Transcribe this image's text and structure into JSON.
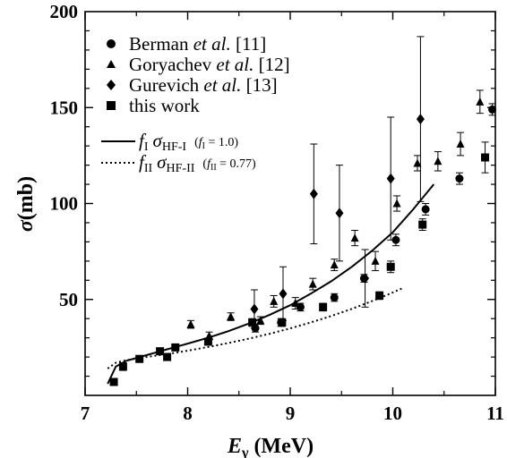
{
  "chart_data": {
    "type": "scatter",
    "xlabel_main": "E",
    "xlabel_sub": "γ",
    "xlabel_unit": " (MeV)",
    "ylabel_main": "σ",
    "ylabel_unit": "(mb)",
    "xlim": [
      7,
      11
    ],
    "ylim": [
      0,
      200
    ],
    "xticks": [
      "7",
      "8",
      "9",
      "10",
      "11"
    ],
    "yticks": [
      "50",
      "100",
      "150",
      "200"
    ],
    "grid": false,
    "legend_position": "top-left",
    "series": [
      {
        "name_prefix": "Berman ",
        "name_italic": "et al.",
        "name_suffix": " [11]",
        "marker": "circle",
        "points": [
          {
            "x": 8.66,
            "y": 35,
            "err": 2
          },
          {
            "x": 8.91,
            "y": 38,
            "err": 2
          },
          {
            "x": 9.1,
            "y": 46,
            "err": 2
          },
          {
            "x": 9.43,
            "y": 51,
            "err": 2
          },
          {
            "x": 9.72,
            "y": 61,
            "err": 2
          },
          {
            "x": 10.03,
            "y": 81,
            "err": 3
          },
          {
            "x": 10.32,
            "y": 97,
            "err": 3
          },
          {
            "x": 10.65,
            "y": 113,
            "err": 3
          },
          {
            "x": 10.97,
            "y": 149,
            "err": 3
          }
        ]
      },
      {
        "name_prefix": "Goryachev ",
        "name_italic": "et al.",
        "name_suffix": " [12]",
        "marker": "triangle",
        "points": [
          {
            "x": 8.03,
            "y": 37,
            "err": 2
          },
          {
            "x": 8.21,
            "y": 31,
            "err": 2
          },
          {
            "x": 8.42,
            "y": 41,
            "err": 2
          },
          {
            "x": 8.71,
            "y": 39,
            "err": 2
          },
          {
            "x": 8.84,
            "y": 49,
            "err": 3
          },
          {
            "x": 9.05,
            "y": 48,
            "err": 3
          },
          {
            "x": 9.22,
            "y": 58,
            "err": 3
          },
          {
            "x": 9.43,
            "y": 68,
            "err": 3
          },
          {
            "x": 9.63,
            "y": 82,
            "err": 4
          },
          {
            "x": 9.83,
            "y": 70,
            "err": 5
          },
          {
            "x": 10.04,
            "y": 100,
            "err": 4
          },
          {
            "x": 10.24,
            "y": 121,
            "err": 4
          },
          {
            "x": 10.44,
            "y": 122,
            "err": 5
          },
          {
            "x": 10.66,
            "y": 131,
            "err": 6
          },
          {
            "x": 10.85,
            "y": 153,
            "err": 6
          }
        ]
      },
      {
        "name_prefix": "Gurevich ",
        "name_italic": "et al.",
        "name_suffix": " [13]",
        "marker": "diamond",
        "points": [
          {
            "x": 8.65,
            "y": 45,
            "err": 10
          },
          {
            "x": 8.93,
            "y": 53,
            "err": 14
          },
          {
            "x": 9.23,
            "y": 105,
            "err": 26
          },
          {
            "x": 9.48,
            "y": 95,
            "err": 25
          },
          {
            "x": 9.73,
            "y": 61,
            "err": 15
          },
          {
            "x": 9.98,
            "y": 113,
            "err": 32
          },
          {
            "x": 10.27,
            "y": 144,
            "err": 43
          }
        ]
      },
      {
        "name": "this work",
        "marker": "square",
        "points": [
          {
            "x": 7.28,
            "y": 7,
            "err": 0
          },
          {
            "x": 7.37,
            "y": 15,
            "err": 2
          },
          {
            "x": 7.53,
            "y": 19,
            "err": 1
          },
          {
            "x": 7.73,
            "y": 23,
            "err": 1
          },
          {
            "x": 7.8,
            "y": 20,
            "err": 1
          },
          {
            "x": 7.88,
            "y": 25,
            "err": 1
          },
          {
            "x": 8.2,
            "y": 28,
            "err": 1
          },
          {
            "x": 8.63,
            "y": 38,
            "err": 2
          },
          {
            "x": 8.92,
            "y": 38,
            "err": 2
          },
          {
            "x": 9.32,
            "y": 46,
            "err": 2
          },
          {
            "x": 9.87,
            "y": 52,
            "err": 2
          },
          {
            "x": 9.98,
            "y": 67,
            "err": 3
          },
          {
            "x": 10.29,
            "y": 89,
            "err": 3
          },
          {
            "x": 10.9,
            "y": 124,
            "err": 8
          }
        ]
      }
    ],
    "fits": [
      {
        "style": "solid",
        "f_main": "f",
        "f_sub": "I",
        "sigma_sub": "HF-I",
        "param_f": "f",
        "param_sub": "I",
        "param_value": " = 1.0)",
        "x": [
          7.22,
          7.3,
          7.4,
          7.5,
          7.6,
          7.7,
          7.8,
          7.9,
          8.0,
          8.2,
          8.4,
          8.6,
          8.8,
          9.0,
          9.2,
          9.4,
          9.6,
          9.8,
          10.0,
          10.2,
          10.4
        ],
        "y": [
          6,
          15,
          18,
          19.5,
          21,
          22.5,
          24,
          25.5,
          27,
          30,
          33.5,
          37.5,
          42,
          47,
          53,
          59.5,
          67,
          75.5,
          85,
          97,
          110
        ]
      },
      {
        "style": "dotted",
        "f_main": "f",
        "f_sub": "II",
        "sigma_sub": "HF-II",
        "param_f": "f",
        "param_sub": "II",
        "param_value": " = 0.77)",
        "x": [
          7.22,
          7.3,
          7.4,
          7.5,
          7.6,
          7.7,
          7.8,
          7.9,
          8.0,
          8.2,
          8.4,
          8.6,
          8.8,
          9.0,
          9.2,
          9.4,
          9.6,
          9.8,
          10.0,
          10.1
        ],
        "y": [
          14,
          17,
          18.3,
          19.2,
          20,
          20.8,
          21.6,
          22.4,
          23.3,
          25.2,
          27.3,
          29.6,
          32.1,
          34.9,
          38,
          41.4,
          45.1,
          49.2,
          53.6,
          56
        ]
      }
    ]
  }
}
